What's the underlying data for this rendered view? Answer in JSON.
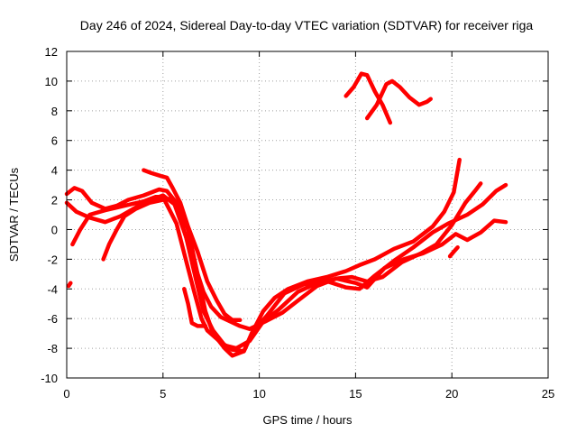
{
  "chart_data": {
    "type": "scatter",
    "title": "Day 246 of 2024, Sidereal Day-to-day VTEC variation (SDTVAR) for receiver riga",
    "xlabel": "GPS time / hours",
    "ylabel": "SDTVAR / TECUs",
    "xlim": [
      0,
      25
    ],
    "ylim": [
      -10,
      12
    ],
    "xticks": [
      0,
      5,
      10,
      15,
      20,
      25
    ],
    "yticks": [
      -10,
      -8,
      -6,
      -4,
      -2,
      0,
      2,
      4,
      6,
      8,
      10,
      12
    ],
    "grid": true,
    "marker_color": "#ff0000",
    "series": [
      {
        "name": "track-1",
        "points": [
          [
            0.0,
            2.4
          ],
          [
            0.4,
            2.8
          ],
          [
            0.8,
            2.6
          ],
          [
            1.3,
            1.8
          ],
          [
            2.0,
            1.4
          ],
          [
            2.6,
            1.6
          ],
          [
            3.2,
            2.0
          ],
          [
            4.0,
            2.3
          ],
          [
            4.8,
            2.7
          ],
          [
            5.2,
            2.6
          ],
          [
            5.7,
            1.8
          ],
          [
            6.3,
            0.0
          ],
          [
            6.8,
            -3.0
          ],
          [
            7.2,
            -5.5
          ],
          [
            7.6,
            -7.0
          ],
          [
            8.2,
            -8.0
          ],
          [
            8.6,
            -8.5
          ],
          [
            9.2,
            -8.2
          ],
          [
            9.6,
            -7.0
          ],
          [
            10.2,
            -5.5
          ],
          [
            10.8,
            -4.6
          ],
          [
            11.5,
            -4.0
          ],
          [
            12.5,
            -3.5
          ],
          [
            13.5,
            -3.2
          ],
          [
            14.5,
            -2.8
          ],
          [
            15.2,
            -2.4
          ],
          [
            16.0,
            -2.0
          ],
          [
            17.0,
            -1.3
          ],
          [
            18.0,
            -0.8
          ],
          [
            19.0,
            0.2
          ],
          [
            19.6,
            1.2
          ],
          [
            20.1,
            2.5
          ],
          [
            20.4,
            4.7
          ]
        ]
      },
      {
        "name": "track-2",
        "points": [
          [
            0.0,
            1.8
          ],
          [
            0.5,
            1.2
          ],
          [
            1.2,
            0.8
          ],
          [
            2.0,
            0.5
          ],
          [
            2.8,
            0.9
          ],
          [
            3.6,
            1.5
          ],
          [
            4.4,
            2.0
          ],
          [
            5.0,
            2.3
          ],
          [
            5.6,
            1.7
          ],
          [
            6.2,
            -0.5
          ],
          [
            6.7,
            -3.3
          ],
          [
            7.1,
            -5.5
          ],
          [
            7.6,
            -6.8
          ],
          [
            8.2,
            -7.8
          ],
          [
            8.8,
            -8.0
          ],
          [
            9.5,
            -7.5
          ],
          [
            10.2,
            -6.2
          ],
          [
            11.0,
            -5.4
          ],
          [
            12.0,
            -4.2
          ],
          [
            13.0,
            -3.6
          ],
          [
            14.0,
            -3.3
          ],
          [
            14.8,
            -3.2
          ],
          [
            15.6,
            -3.5
          ],
          [
            16.4,
            -3.2
          ],
          [
            17.4,
            -2.2
          ],
          [
            18.4,
            -1.6
          ],
          [
            19.2,
            -1.0
          ],
          [
            20.0,
            0.3
          ],
          [
            20.7,
            1.8
          ],
          [
            21.2,
            2.6
          ],
          [
            21.5,
            3.1
          ]
        ]
      },
      {
        "name": "track-3",
        "points": [
          [
            0.3,
            -1.0
          ],
          [
            0.7,
            0.0
          ],
          [
            1.2,
            1.0
          ],
          [
            2.0,
            1.3
          ],
          [
            3.0,
            1.6
          ],
          [
            4.0,
            1.9
          ],
          [
            4.6,
            2.2
          ],
          [
            5.0,
            2.2
          ],
          [
            5.7,
            0.4
          ],
          [
            6.1,
            -1.6
          ],
          [
            6.6,
            -4.1
          ],
          [
            7.0,
            -6.0
          ],
          [
            7.3,
            -6.8
          ],
          [
            8.0,
            -7.6
          ],
          [
            8.6,
            -8.1
          ],
          [
            9.2,
            -8.2
          ],
          [
            9.7,
            -6.8
          ],
          [
            10.4,
            -5.8
          ],
          [
            11.3,
            -4.3
          ],
          [
            12.3,
            -3.7
          ],
          [
            13.3,
            -3.4
          ],
          [
            14.5,
            -3.9
          ],
          [
            15.2,
            -4.0
          ],
          [
            16.0,
            -3.1
          ],
          [
            17.0,
            -2.1
          ],
          [
            18.0,
            -1.2
          ],
          [
            19.0,
            -0.2
          ],
          [
            19.8,
            0.4
          ],
          [
            20.8,
            1.0
          ],
          [
            21.6,
            1.7
          ],
          [
            22.3,
            2.6
          ],
          [
            22.8,
            3.0
          ]
        ]
      },
      {
        "name": "track-4",
        "points": [
          [
            1.9,
            -2.0
          ],
          [
            2.2,
            -1.0
          ],
          [
            2.6,
            0.0
          ],
          [
            3.0,
            0.9
          ],
          [
            3.6,
            1.4
          ],
          [
            4.3,
            1.8
          ],
          [
            5.0,
            2.0
          ],
          [
            5.5,
            2.1
          ],
          [
            6.0,
            0.3
          ],
          [
            6.6,
            -2.2
          ],
          [
            7.1,
            -4.2
          ],
          [
            7.5,
            -5.2
          ],
          [
            8.0,
            -5.9
          ],
          [
            8.5,
            -6.2
          ],
          [
            9.0,
            -6.5
          ],
          [
            9.5,
            -6.7
          ],
          [
            10.3,
            -6.2
          ],
          [
            11.2,
            -5.6
          ],
          [
            12.0,
            -4.8
          ],
          [
            13.0,
            -3.8
          ],
          [
            14.0,
            -3.3
          ],
          [
            15.0,
            -3.6
          ],
          [
            15.6,
            -3.9
          ],
          [
            16.5,
            -2.6
          ],
          [
            17.5,
            -2.0
          ],
          [
            18.5,
            -1.6
          ],
          [
            19.5,
            -1.0
          ],
          [
            20.2,
            -0.3
          ],
          [
            20.8,
            -0.7
          ],
          [
            21.5,
            -0.2
          ],
          [
            22.2,
            0.6
          ],
          [
            22.8,
            0.5
          ]
        ]
      },
      {
        "name": "track-5",
        "points": [
          [
            4.0,
            4.0
          ],
          [
            4.4,
            3.8
          ],
          [
            4.9,
            3.6
          ],
          [
            5.2,
            3.5
          ],
          [
            5.5,
            2.8
          ],
          [
            5.9,
            1.8
          ],
          [
            6.3,
            0.2
          ],
          [
            6.8,
            -1.5
          ],
          [
            7.3,
            -3.5
          ],
          [
            7.8,
            -4.8
          ],
          [
            8.2,
            -5.7
          ],
          [
            8.6,
            -6.1
          ],
          [
            9.0,
            -6.1
          ]
        ]
      },
      {
        "name": "track-6",
        "points": [
          [
            6.1,
            -4.0
          ],
          [
            6.3,
            -5.0
          ],
          [
            6.5,
            -6.3
          ],
          [
            6.8,
            -6.5
          ],
          [
            7.2,
            -6.5
          ]
        ]
      },
      {
        "name": "track-7",
        "points": [
          [
            0.1,
            -3.8
          ],
          [
            0.2,
            -3.6
          ]
        ]
      },
      {
        "name": "track-8",
        "points": [
          [
            19.9,
            -1.8
          ],
          [
            20.1,
            -1.5
          ],
          [
            20.3,
            -1.2
          ]
        ]
      },
      {
        "name": "track-9",
        "points": [
          [
            14.5,
            9.0
          ],
          [
            14.9,
            9.6
          ],
          [
            15.3,
            10.5
          ],
          [
            15.6,
            10.4
          ],
          [
            16.0,
            9.3
          ],
          [
            16.4,
            8.4
          ],
          [
            16.8,
            7.2
          ]
        ]
      },
      {
        "name": "track-10",
        "points": [
          [
            15.6,
            7.5
          ],
          [
            16.1,
            8.4
          ],
          [
            16.6,
            9.8
          ],
          [
            16.9,
            10.0
          ],
          [
            17.3,
            9.6
          ],
          [
            17.8,
            8.9
          ],
          [
            18.3,
            8.4
          ],
          [
            18.7,
            8.6
          ],
          [
            18.9,
            8.8
          ]
        ]
      }
    ]
  }
}
